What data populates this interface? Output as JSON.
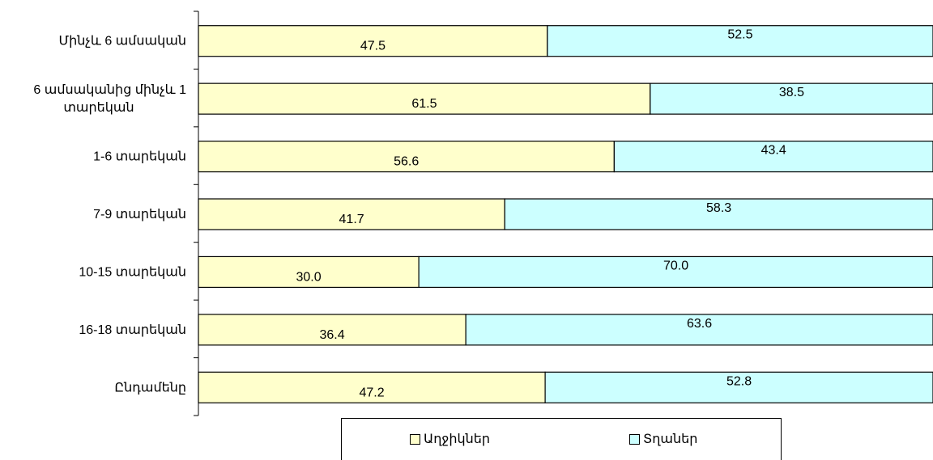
{
  "chart_data": {
    "type": "bar",
    "orientation": "horizontal",
    "stacked": "percent",
    "categories": [
      "Մինչև 6 ամսական",
      "6 ամսականից մինչև 1 տարեկան",
      "1-6 տարեկան",
      "7-9 տարեկան",
      "10-15 տարեկան",
      "16-18 տարեկան",
      "Ընդամենը"
    ],
    "category_lines": [
      [
        "Մինչև 6 ամսական"
      ],
      [
        "6 ամսականից մինչև 1",
        "տարեկան"
      ],
      [
        "1-6 տարեկան"
      ],
      [
        "7-9 տարեկան"
      ],
      [
        "10-15 տարեկան"
      ],
      [
        "16-18 տարեկան"
      ],
      [
        "Ընդամենը"
      ]
    ],
    "series": [
      {
        "name": "Աղջիկներ",
        "color": "#ffffcc",
        "values": [
          47.5,
          61.5,
          56.6,
          41.7,
          30.0,
          36.4,
          47.2
        ],
        "labels": [
          "47.5",
          "61.5",
          "56.6",
          "41.7",
          "30.0",
          "36.4",
          "47.2"
        ]
      },
      {
        "name": "Տղաներ",
        "color": "#ccffff",
        "values": [
          52.5,
          38.5,
          43.4,
          58.3,
          70.0,
          63.6,
          52.8
        ],
        "labels": [
          "52.5",
          "38.5",
          "43.4",
          "58.3",
          "70.0",
          "63.6",
          "52.8"
        ]
      }
    ],
    "xlim": [
      0,
      100
    ],
    "grid": false,
    "legend_position": "bottom"
  }
}
